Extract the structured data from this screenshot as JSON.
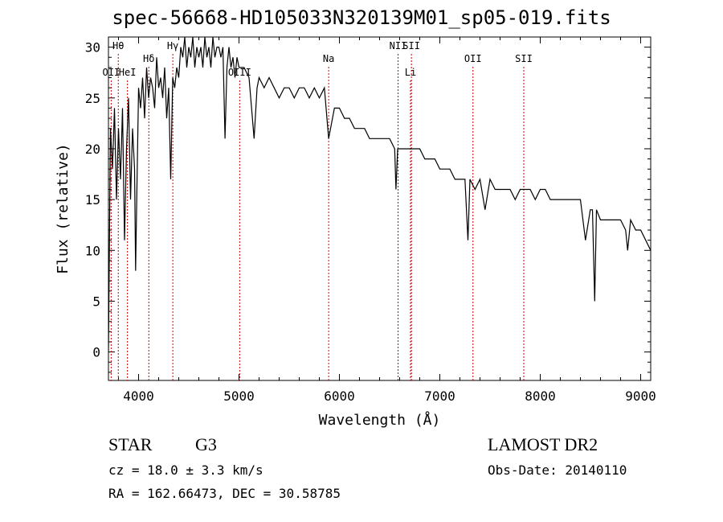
{
  "chart_data": {
    "type": "line",
    "title": "spec-56668-HD105033N320139M01_sp05-019.fits",
    "xlabel": "Wavelength (Å)",
    "ylabel": "Flux (relative)",
    "xlim": [
      3700,
      9100
    ],
    "ylim": [
      -2.8,
      31
    ],
    "xticks": [
      4000,
      5000,
      6000,
      7000,
      8000,
      9000
    ],
    "yticks": [
      0,
      5,
      10,
      15,
      20,
      25,
      30
    ],
    "grid": false,
    "series": [
      {
        "x": [
          3700,
          3720,
          3740,
          3760,
          3780,
          3800,
          3820,
          3840,
          3860,
          3880,
          3900,
          3920,
          3940,
          3960,
          3970,
          3980,
          4000,
          4020,
          4040,
          4060,
          4080,
          4100,
          4120,
          4140,
          4160,
          4180,
          4200,
          4220,
          4240,
          4260,
          4280,
          4300,
          4320,
          4340,
          4360,
          4380,
          4400,
          4420,
          4440,
          4460,
          4480,
          4500,
          4520,
          4540,
          4560,
          4580,
          4600,
          4620,
          4640,
          4660,
          4680,
          4700,
          4720,
          4740,
          4760,
          4780,
          4800,
          4820,
          4840,
          4861,
          4880,
          4900,
          4920,
          4940,
          4960,
          4980,
          5000,
          5050,
          5100,
          5150,
          5180,
          5200,
          5250,
          5300,
          5350,
          5400,
          5450,
          5500,
          5550,
          5600,
          5650,
          5700,
          5750,
          5800,
          5850,
          5893,
          5950,
          6000,
          6050,
          6100,
          6150,
          6200,
          6250,
          6300,
          6350,
          6400,
          6450,
          6500,
          6550,
          6563,
          6580,
          6600,
          6650,
          6700,
          6750,
          6800,
          6850,
          6900,
          6950,
          7000,
          7050,
          7100,
          7150,
          7200,
          7250,
          7280,
          7300,
          7350,
          7400,
          7450,
          7500,
          7550,
          7600,
          7650,
          7700,
          7750,
          7800,
          7850,
          7900,
          7950,
          8000,
          8050,
          8100,
          8150,
          8200,
          8250,
          8300,
          8350,
          8400,
          8450,
          8498,
          8520,
          8542,
          8560,
          8600,
          8662,
          8700,
          8750,
          8800,
          8850,
          8870,
          8900,
          8950,
          9000,
          9050,
          9100
        ],
        "y": [
          0,
          22,
          18,
          24,
          15,
          22,
          17,
          24,
          11,
          20,
          25,
          15,
          22,
          18,
          8,
          14,
          26,
          24,
          27,
          23,
          28,
          25,
          27,
          26,
          24,
          29,
          26,
          27,
          25,
          28,
          23,
          26,
          17,
          27,
          26,
          28,
          27,
          30,
          29,
          31,
          28,
          30,
          29,
          31,
          28,
          30,
          29,
          30,
          28,
          31,
          29,
          30,
          28,
          31,
          29,
          30,
          30,
          29,
          30,
          21,
          28,
          30,
          28,
          29,
          27,
          29,
          28,
          28,
          27,
          21,
          26,
          27,
          26,
          27,
          26,
          25,
          26,
          26,
          25,
          26,
          26,
          25,
          26,
          25,
          26,
          21,
          24,
          24,
          23,
          23,
          22,
          22,
          22,
          21,
          21,
          21,
          21,
          21,
          20,
          16,
          20,
          20,
          20,
          20,
          20,
          20,
          19,
          19,
          19,
          18,
          18,
          18,
          17,
          17,
          17,
          11,
          17,
          16,
          17,
          14,
          17,
          16,
          16,
          16,
          16,
          15,
          16,
          16,
          16,
          15,
          16,
          16,
          15,
          15,
          15,
          15,
          15,
          15,
          15,
          11,
          14,
          14,
          5,
          14,
          13,
          13,
          13,
          13,
          13,
          12,
          10,
          13,
          12,
          12,
          11,
          10
        ]
      }
    ],
    "line_markers": [
      {
        "label": "Hθ",
        "wavelength": 3798,
        "row": 0
      },
      {
        "label": "OII",
        "wavelength": 3727,
        "row": 2
      },
      {
        "label": "HeI",
        "wavelength": 3889,
        "row": 2
      },
      {
        "label": "Hδ",
        "wavelength": 4102,
        "row": 1
      },
      {
        "label": "Hγ",
        "wavelength": 4341,
        "row": 0
      },
      {
        "label": "OIII",
        "wavelength": 5007,
        "row": 2
      },
      {
        "label": "Na",
        "wavelength": 5893,
        "row": 1
      },
      {
        "label": "NII",
        "wavelength": 6584,
        "row": 0
      },
      {
        "label": "SII",
        "wavelength": 6717,
        "row": 0
      },
      {
        "label": "Li",
        "wavelength": 6708,
        "row": 2
      },
      {
        "label": "OII",
        "wavelength": 7330,
        "row": 1
      },
      {
        "label": "SII",
        "wavelength": 7836,
        "row": 1
      }
    ],
    "marker_color": "#cc0000"
  },
  "info": {
    "object_class": "STAR",
    "subclass": "G3",
    "survey": "LAMOST DR2",
    "cz": "cz = 18.0 ± 3.3 km/s",
    "obs_date": "Obs-Date: 20140110",
    "coords": "RA = 162.66473, DEC =  30.58785"
  }
}
